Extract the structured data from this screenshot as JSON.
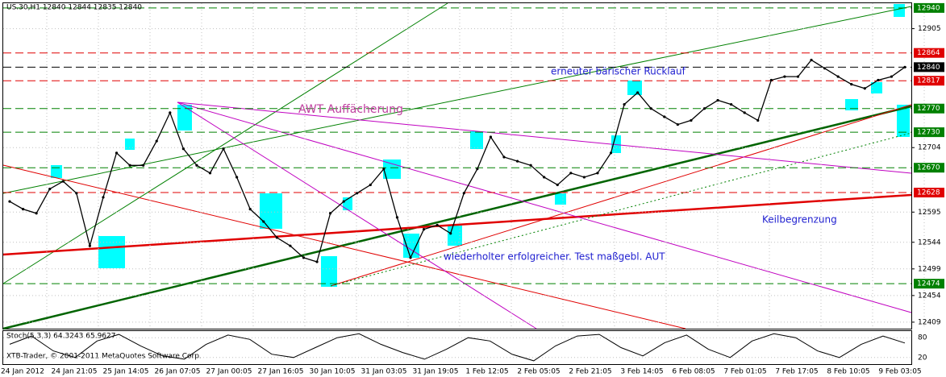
{
  "chart_data": {
    "type": "line",
    "title": "US.30,H1  12840 12844 12835 12840",
    "values": [
      12613,
      12600,
      12593,
      12634,
      12647,
      12627,
      12538,
      12620,
      12695,
      12674,
      12674,
      12715,
      12763,
      12702,
      12674,
      12661,
      12702,
      12654,
      12600,
      12579,
      12552,
      12538,
      12518,
      12511,
      12593,
      12613,
      12627,
      12641,
      12668,
      12586,
      12518,
      12566,
      12573,
      12559,
      12627,
      12668,
      12722,
      12688,
      12681,
      12674,
      12654,
      12641,
      12661,
      12654,
      12661,
      12695,
      12777,
      12797,
      12770,
      12756,
      12743,
      12750,
      12770,
      12784,
      12777,
      12763,
      12750,
      12818,
      12824,
      12824,
      12852,
      12838,
      12824,
      12811,
      12804,
      12818,
      12824,
      12840
    ],
    "color": "#000000",
    "ylim": [
      12398,
      12948
    ],
    "yticks": [
      12905,
      12704,
      12595,
      12544,
      12499,
      12454,
      12409
    ],
    "xticks": [
      "24 Jan 2012",
      "24 Jan 21:05",
      "25 Jan 14:05",
      "26 Jan 07:05",
      "27 Jan 00:05",
      "27 Jan 16:05",
      "30 Jan 10:05",
      "31 Jan 03:05",
      "31 Jan 19:05",
      "1 Feb 12:05",
      "2 Feb 05:05",
      "2 Feb 21:05",
      "3 Feb 14:05",
      "6 Feb 08:05",
      "7 Feb 01:05",
      "7 Feb 17:05",
      "8 Feb 10:05",
      "9 Feb 03:05"
    ],
    "grid": true,
    "levels": [
      {
        "value": 12940,
        "color": "#008000"
      },
      {
        "value": 12864,
        "color": "#e00000"
      },
      {
        "value": 12840,
        "color": "#000000"
      },
      {
        "value": 12817,
        "color": "#e00000"
      },
      {
        "value": 12770,
        "color": "#008000"
      },
      {
        "value": 12730,
        "color": "#008000"
      },
      {
        "value": 12670,
        "color": "#008000"
      },
      {
        "value": 12628,
        "color": "#e00000"
      },
      {
        "value": 12474,
        "color": "#008000"
      }
    ],
    "annotations": [
      "AWT Auffächerung",
      "erneuter bärischer Rücklauf",
      "Keilbegrenzung",
      "wiederholter erfolgreicher. Test maßgebl. AUT"
    ],
    "stoch": {
      "label": "Stoch(5,3,3) 64.3243 65.9627",
      "ylim": [
        0,
        100
      ],
      "yticks": [
        80,
        20
      ],
      "values": [
        60,
        85,
        40,
        20,
        70,
        90,
        55,
        25,
        15,
        60,
        88,
        75,
        30,
        20,
        50,
        80,
        92,
        60,
        35,
        15,
        45,
        80,
        70,
        30,
        10,
        55,
        85,
        90,
        50,
        25,
        65,
        88,
        45,
        20,
        70,
        92,
        80,
        40,
        20,
        60,
        85,
        64
      ]
    },
    "copyright": "XTB-Trader, © 2001-2011 MetaQuotes Software Corp."
  }
}
